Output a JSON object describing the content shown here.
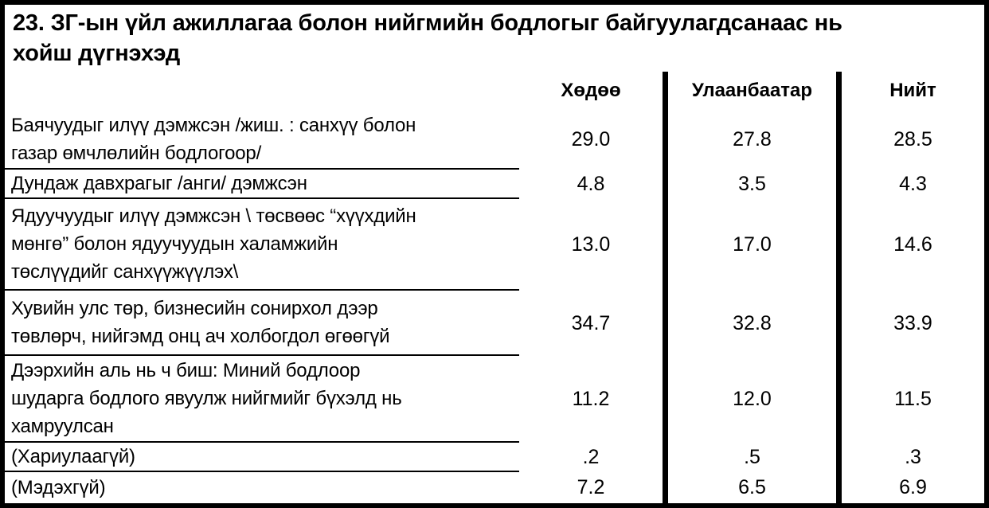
{
  "title": "23. ЗГ-ын үйл ажиллагаа болон нийгмийн бодлогыг байгуулагдсанаас нь\nхойш дүгнэхэд",
  "table": {
    "columns": [
      "Хөдөө",
      "Улаанбаатар",
      "Нийт"
    ],
    "rows": [
      {
        "label": "Баячуудыг илүү дэмжсэн /жиш. : санхүү болон\nгазар өмчлөлийн бодлогоор/",
        "values": [
          "29.0",
          "27.8",
          "28.5"
        ]
      },
      {
        "label": "Дундаж давхрагыг /анги/ дэмжсэн",
        "values": [
          "4.8",
          "3.5",
          "4.3"
        ]
      },
      {
        "label": "Ядуучуудыг илүү дэмжсэн \\ төсвөөс “хүүхдийн\nмөнгө” болон ядуучуудын халамжийн\nтөслүүдийг санхүүжүүлэх\\",
        "values": [
          "13.0",
          "17.0",
          "14.6"
        ]
      },
      {
        "label": "Хувийн улс төр, бизнесийн сонирхол дээр\nтөвлөрч, нийгэмд онц ач холбогдол өгөөгүй",
        "values": [
          "34.7",
          "32.8",
          "33.9"
        ]
      },
      {
        "label": "Дээрхийн аль нь ч биш: Миний бодлоор\nшударга бодлого явуулж нийгмийг бүхэлд нь\nхамруулсан",
        "values": [
          "11.2",
          "12.0",
          "11.5"
        ]
      },
      {
        "label": "(Хариулаагүй)",
        "values": [
          ".2",
          ".5",
          ".3"
        ]
      },
      {
        "label": "(Мэдэхгүй)",
        "values": [
          "7.2",
          "6.5",
          "6.9"
        ]
      }
    ]
  },
  "colors": {
    "background": "#ffffff",
    "text": "#000000",
    "border": "#000000"
  }
}
